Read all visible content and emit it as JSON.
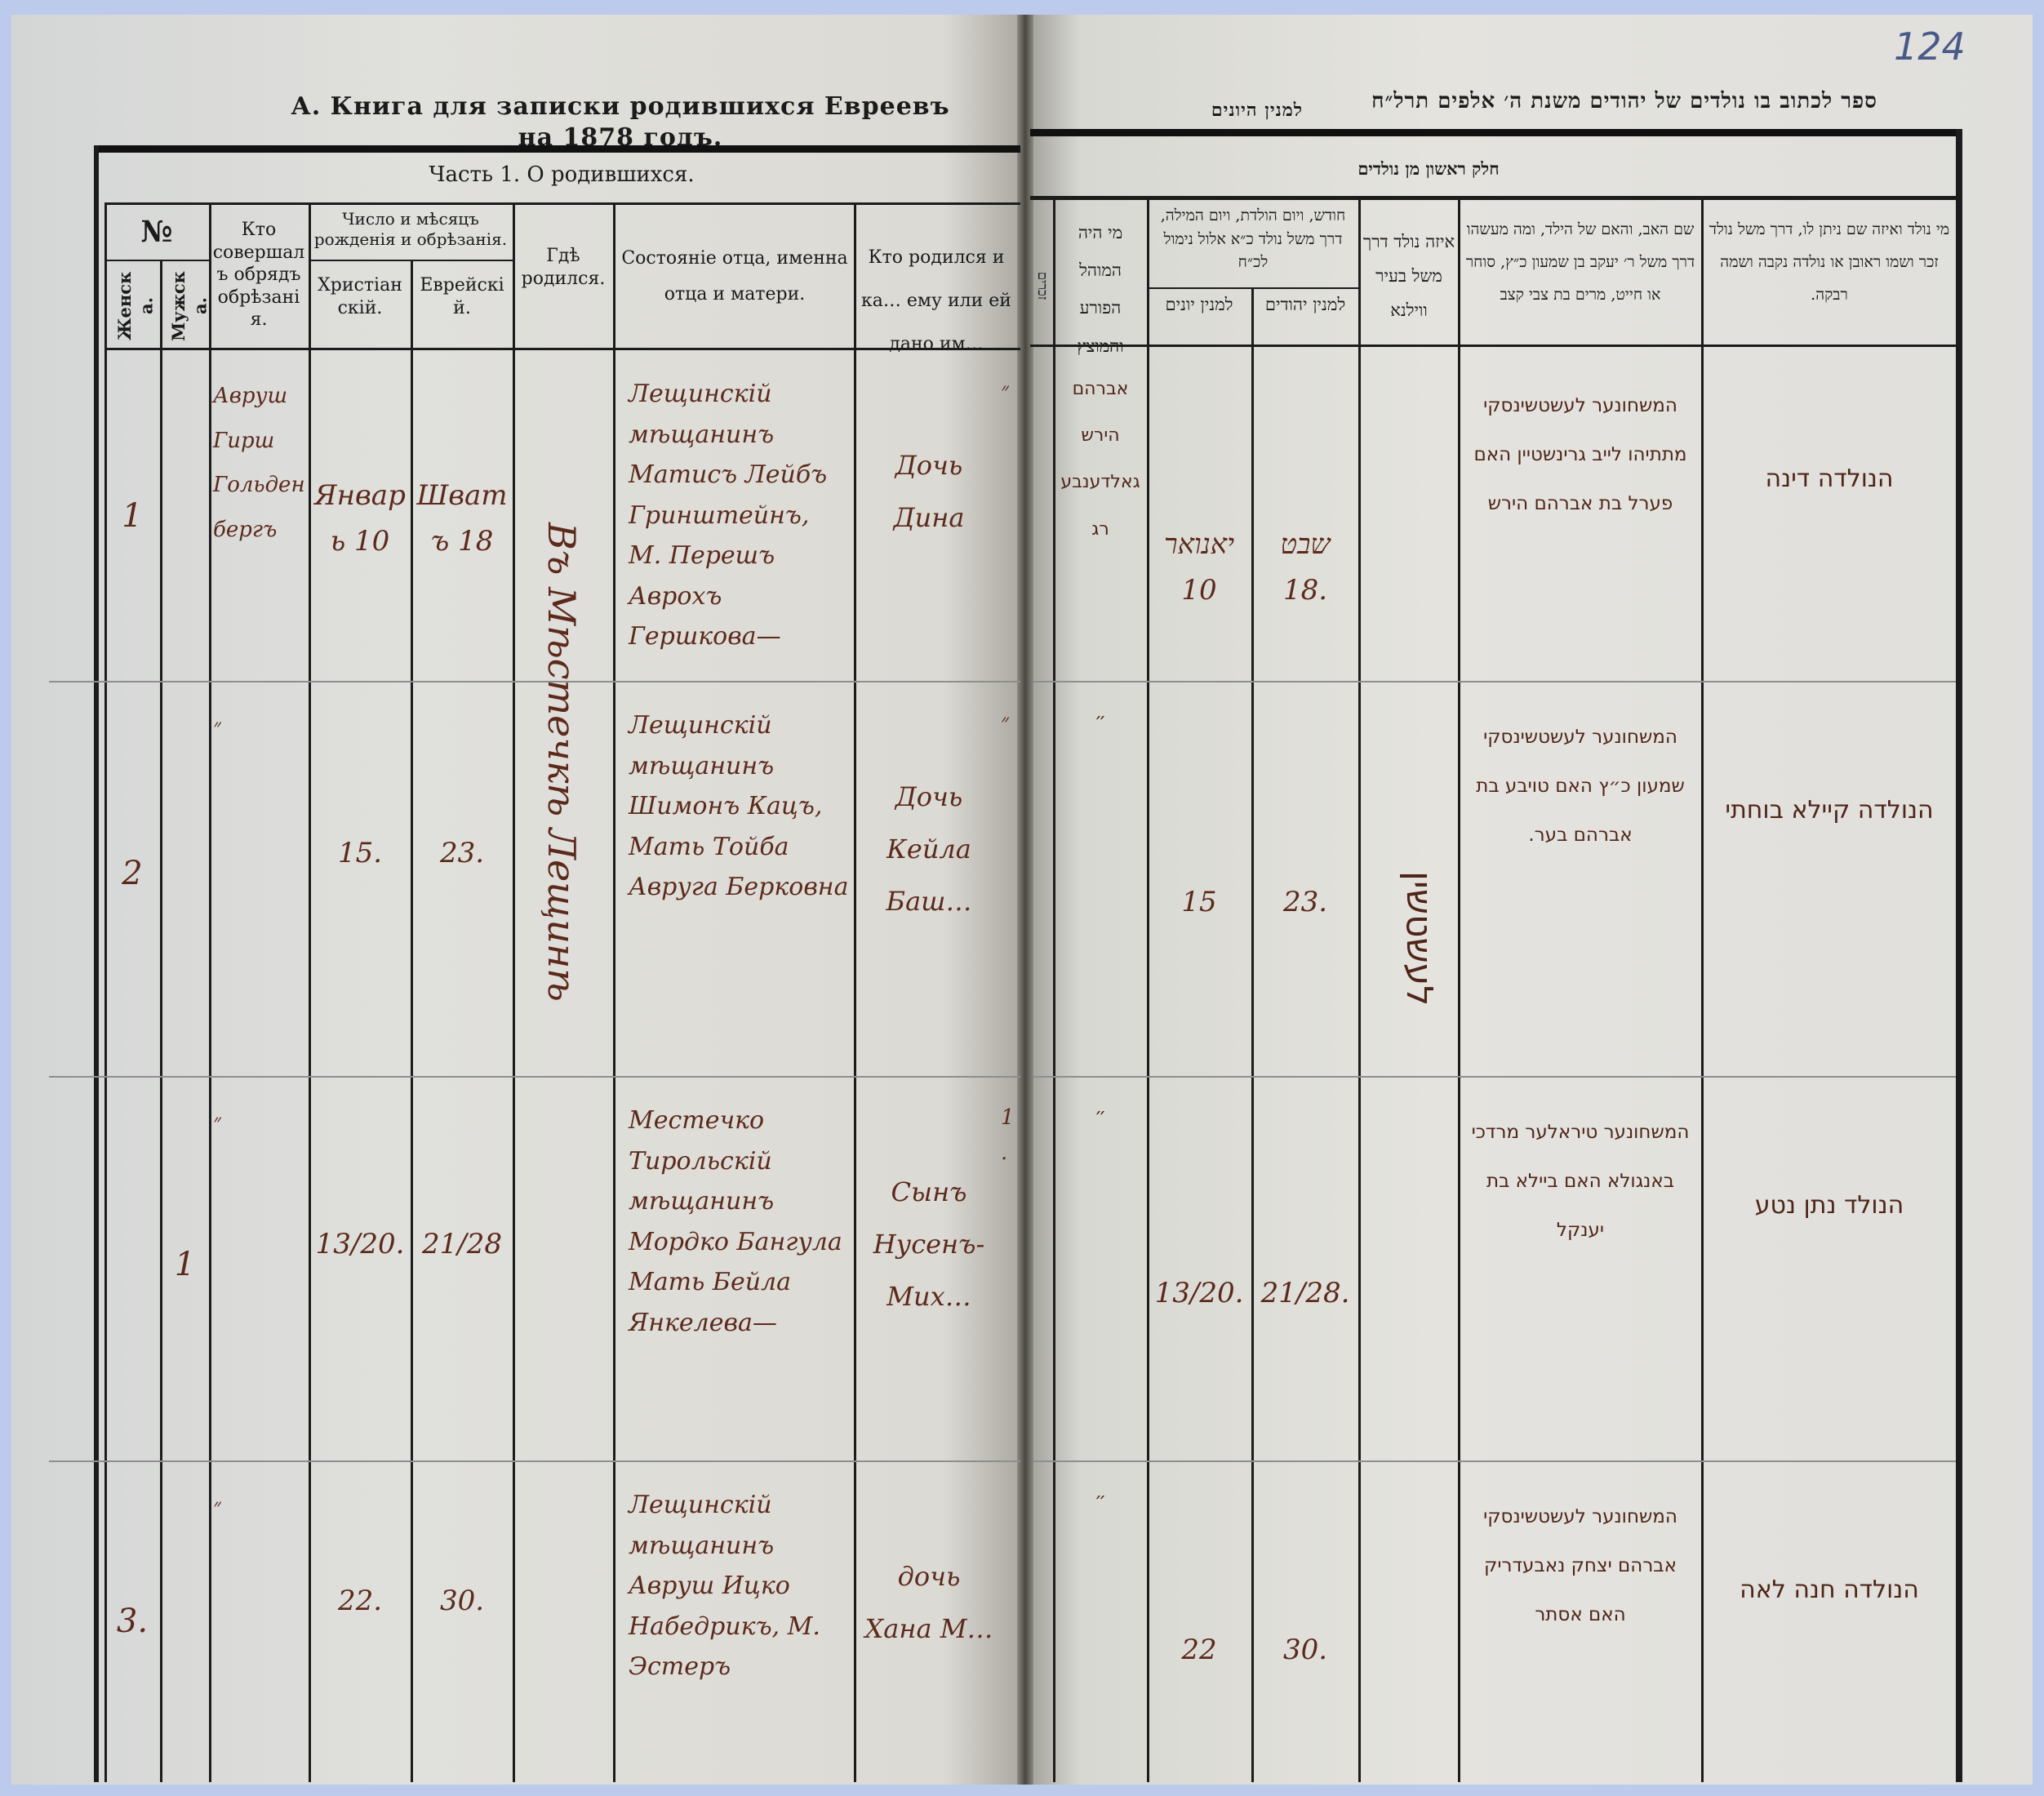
{
  "left_page": {
    "title": "А. Книга для записки родившихся Евреевъ на 1878 годъ.",
    "part": "Часть 1. О родившихся.",
    "columns": {
      "number": "№",
      "female": "Женска.",
      "male": "Мужска.",
      "mohel": "Кто совершалъ обрядъ обрѣзанія.",
      "date_group": "Число и мѣсяцъ рожденія и обрѣзанія.",
      "christian": "Христіанскій.",
      "jewish": "Еврейскій.",
      "place": "Гдѣ родился.",
      "parents": "Состояніе отца, именна отца и матери.",
      "child": "Кто родился и ка… ему или ей дано им…"
    },
    "place_entry": "Въ Мѣстечкѣ Лещинѣ",
    "rows": [
      {
        "female": "1",
        "male": "",
        "mohel": "Авруш Гирш Гольденбергъ",
        "christian": "Январь 10",
        "jewish": "Шватъ 18",
        "parents": "Лещинскій мѣщанинъ Матисъ Лейбъ Гринштейнъ, М. Перешъ Аврохъ Гершкова—",
        "child": "Дочь Дина",
        "mark": "״"
      },
      {
        "female": "2",
        "male": "",
        "mohel": "״",
        "christian": "15.",
        "jewish": "23.",
        "parents": "Лещинскій мѣщанинъ Шимонъ Кацъ, Мать Тойба Авруга Берковна",
        "child": "Дочь Кейла Баш…",
        "mark": "״"
      },
      {
        "female": "",
        "male": "1",
        "mohel": "״",
        "christian": "13/20.",
        "jewish": "21/28",
        "parents": "Местечко Тирольскій мѣщанинъ Мордко Бангула Мать Бейла Янкелева—",
        "child": "Сынъ Нусенъ-Мих…",
        "mark": "1."
      },
      {
        "female": "3.",
        "male": "",
        "mohel": "״",
        "christian": "22.",
        "jewish": "30.",
        "parents": "Лещинскій мѣщанинъ Авруш Ицко Набедрикъ, М. Эстеръ",
        "child": "дочь Хана М…",
        "mark": ""
      }
    ]
  },
  "right_page": {
    "page_number": "124",
    "title": "ספר לכתוב בו נולדים של יהודים משנת ה׳ אלפים תרל״ח",
    "title_sub": "למנין היונים",
    "part": "חלק ראשון מן נולדים",
    "columns": {
      "males_cut": "זכרים",
      "mohel": "מי היה המוהל הפורע והמוצץ",
      "date_group": "חודש, ויום הולדת, ויום המילה, דרך משל נולד כ״א אלול נימול לכ״ח",
      "gentile": "למנין יונים",
      "jewish": "למנין יהודים",
      "place": "איזה נולד דרך משל בעיר ווילנא",
      "parents": "שם האב, והאם של הילד, ומה מעשהו דרך משל ר׳ יעקב בן שמעון כ״ץ, סוחר או חייט, מרים בת צבי קצב",
      "child": "מי נולד ואיזה שם ניתן לו, דרך משל נולד זכר ושמו ראובן או נולדה נקבה ושמה רבקה."
    },
    "place_entry": "לעשטשין",
    "rows": [
      {
        "mohel": "אברהם הירש גאלדענבערג",
        "gentile": "יאנואר 10",
        "jewish": "שבט 18.",
        "parents": "המשחונער לעשטשינסקי מתתיהו לייב גרינשטיין האם פערל בת אברהם הירש",
        "child": "הנולדה דינה"
      },
      {
        "mohel": "״",
        "gentile": "15",
        "jewish": "23.",
        "parents": "המשחונער לעשטשינסקי שמעון כ״ץ האם טויבע בת אברהם בער.",
        "child": "הנולדה קיילא בוחתי"
      },
      {
        "mohel": "״",
        "gentile": "13/20.",
        "jewish": "21/28.",
        "parents": "המשחונער טיראלער מרדכי באנגולא האם ביילא בת יענקל",
        "child": "הנולד נתן נטע"
      },
      {
        "mohel": "״",
        "gentile": "22",
        "jewish": "30.",
        "parents": "המשחונער לעשטשינסקי אברהם יצחק נאבעדריק האם אסתר",
        "child": "הנולדה חנה לאה"
      }
    ]
  },
  "colors": {
    "frame": "#bccbeb",
    "ink": "#5c2a1c",
    "print": "#1b1b1b"
  }
}
